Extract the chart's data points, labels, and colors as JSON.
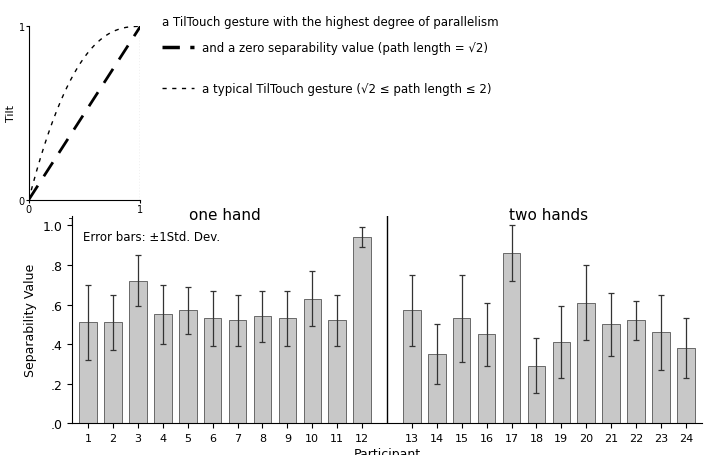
{
  "bar_values": [
    0.51,
    0.51,
    0.72,
    0.55,
    0.57,
    0.53,
    0.52,
    0.54,
    0.53,
    0.63,
    0.52,
    0.94,
    0.57,
    0.35,
    0.53,
    0.45,
    0.86,
    0.29,
    0.41,
    0.61,
    0.5,
    0.52,
    0.46,
    0.38
  ],
  "bar_errors": [
    0.19,
    0.14,
    0.13,
    0.15,
    0.12,
    0.14,
    0.13,
    0.13,
    0.14,
    0.14,
    0.13,
    0.05,
    0.18,
    0.15,
    0.22,
    0.16,
    0.14,
    0.14,
    0.18,
    0.19,
    0.16,
    0.1,
    0.19,
    0.15
  ],
  "participants": [
    1,
    2,
    3,
    4,
    5,
    6,
    7,
    8,
    9,
    10,
    11,
    12,
    13,
    14,
    15,
    16,
    17,
    18,
    19,
    20,
    21,
    22,
    23,
    24
  ],
  "bar_color": "#c8c8c8",
  "bar_edge_color": "#555555",
  "error_color": "#333333",
  "ylabel": "Separability Value",
  "xlabel": "Participant",
  "ylim": [
    0,
    1.05
  ],
  "yticks": [
    0.0,
    0.2,
    0.4,
    0.6,
    0.8,
    1.0
  ],
  "ytick_labels": [
    ".0",
    ".2",
    ".4",
    ".6",
    ".8",
    "1.0"
  ],
  "one_hand_label": "one hand",
  "two_hands_label": "two hands",
  "error_bar_note": "Error bars: ±1Std. Dev.",
  "legend_line1": "a TilTouch gesture with the highest degree of parallelism",
  "legend_line2": "and a zero separability value (path length = √2)",
  "legend_line3": "a typical TilTouch gesture (√2 ≤ path length ≤ 2)"
}
